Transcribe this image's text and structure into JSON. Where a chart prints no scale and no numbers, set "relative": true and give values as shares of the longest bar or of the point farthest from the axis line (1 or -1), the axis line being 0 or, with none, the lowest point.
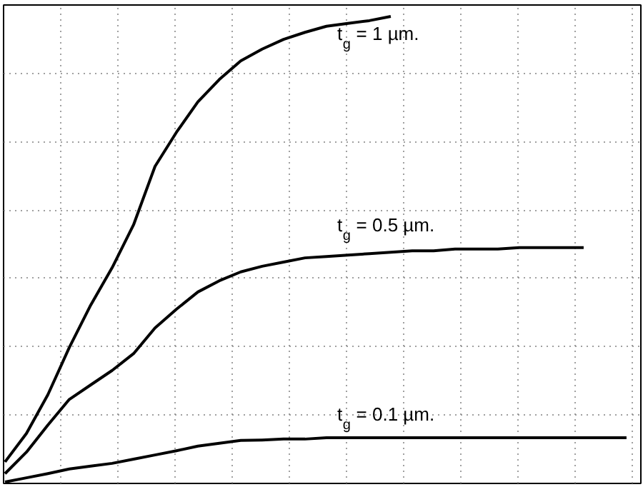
{
  "chart_data": {
    "type": "line",
    "relative": true,
    "grid": true,
    "line_style": "solid",
    "categories": [
      null,
      null,
      null,
      null,
      null,
      null,
      null,
      null,
      null,
      null,
      null,
      null,
      null,
      null,
      null,
      null,
      null,
      null,
      null,
      null,
      null,
      null,
      null,
      null,
      null,
      null,
      null,
      null,
      null,
      null
    ],
    "series": [
      {
        "color": "#000000",
        "values": [
          0.046,
          0.107,
          0.19,
          0.291,
          0.382,
          0.462,
          0.554,
          0.679,
          0.752,
          0.817,
          0.865,
          0.905,
          0.93,
          0.951,
          0.966,
          0.979,
          0.985,
          0.991,
          1.0,
          null,
          null,
          null,
          null,
          null,
          null,
          null,
          null,
          null,
          null,
          null
        ]
      },
      {
        "color": "#000000",
        "values": [
          0.021,
          0.067,
          0.125,
          0.18,
          0.211,
          0.242,
          0.278,
          0.333,
          0.373,
          0.41,
          0.434,
          0.453,
          0.465,
          0.474,
          0.483,
          0.486,
          0.489,
          0.492,
          0.495,
          0.498,
          0.498,
          0.502,
          0.502,
          0.502,
          0.505,
          0.505,
          0.505,
          0.505,
          null,
          null
        ]
      },
      {
        "color": "#000000",
        "values": [
          0.003,
          0.012,
          0.021,
          0.031,
          0.037,
          0.043,
          0.052,
          0.061,
          0.07,
          0.08,
          0.086,
          0.092,
          0.093,
          0.095,
          0.095,
          0.098,
          0.098,
          0.098,
          0.098,
          0.098,
          0.098,
          0.098,
          0.098,
          0.098,
          0.098,
          0.098,
          0.098,
          0.098,
          0.098,
          0.098
        ]
      }
    ],
    "annotations": [
      "t$_{g}$ = 1 µm.",
      "t$_{g}$ = 0.5 µm.",
      "t$_{g}$ = 0.1 µm."
    ]
  }
}
